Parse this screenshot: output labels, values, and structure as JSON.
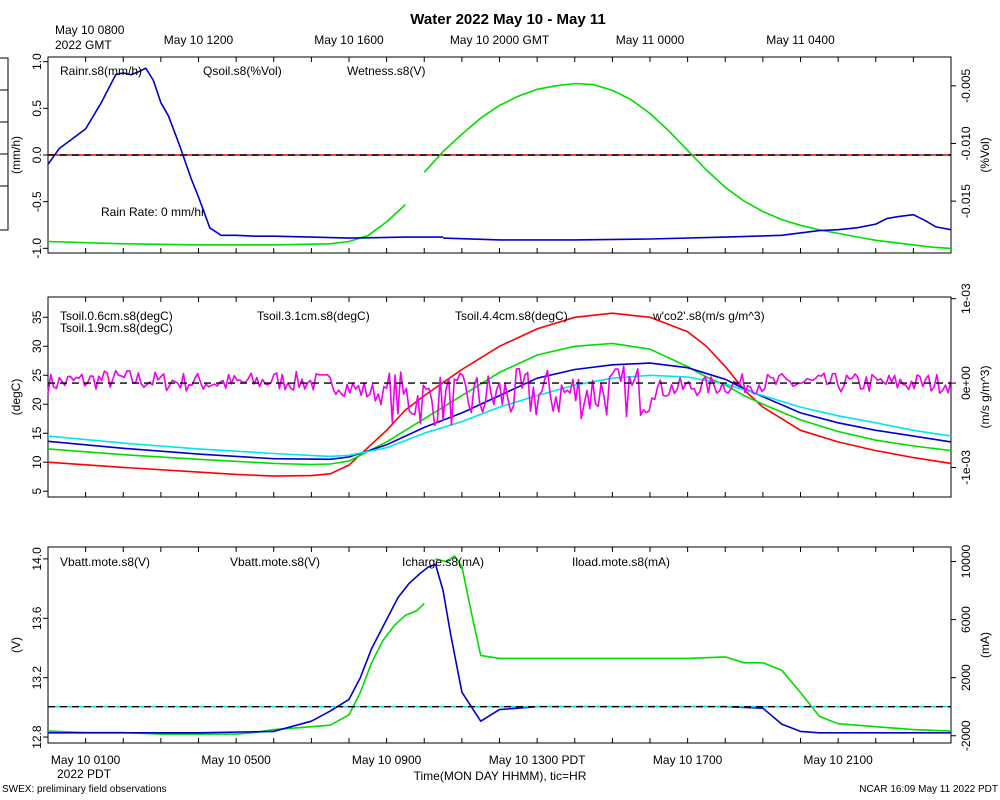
{
  "title": "Water 2022 May 10 - May 11",
  "top_axis": {
    "first_tick_line1": "May 10 0800",
    "first_tick_line2": "2022 GMT",
    "ticks": [
      {
        "h": 4,
        "label": "May 10 1200"
      },
      {
        "h": 8,
        "label": "May 10 1600"
      },
      {
        "h": 12,
        "label": "May 10 2000 GMT"
      },
      {
        "h": 16,
        "label": "May 11 0000"
      },
      {
        "h": 20,
        "label": "May 11 0400"
      }
    ]
  },
  "bottom_axis": {
    "ticks": [
      {
        "h": 1,
        "label": "May 10 0100"
      },
      {
        "h": 5,
        "label": "May 10 0500"
      },
      {
        "h": 9,
        "label": "May 10 0900"
      },
      {
        "h": 13,
        "label": "May 10 1300 PDT"
      },
      {
        "h": 17,
        "label": "May 10 1700"
      },
      {
        "h": 21,
        "label": "May 10 2100"
      }
    ],
    "year_label": "2022 PDT",
    "xlabel": "Time(MON DAY HHMM), tic=HR"
  },
  "footer": {
    "left": "SWEX: preliminary field observations",
    "right": "NCAR 16:09 May 11 2022 PDT"
  },
  "chart_data": [
    {
      "id": "water",
      "type": "line",
      "x_hours_pdt": [
        0,
        24
      ],
      "left_axis": {
        "label": "(mm/h)",
        "ylim": [
          -1.05,
          1.05
        ],
        "ticks": [
          -1.0,
          -0.5,
          0.0,
          0.5,
          1.0
        ],
        "tick_labels": [
          "-1.0",
          "-0.5",
          "0.0",
          "0.5",
          "1.0"
        ]
      },
      "right_axis": {
        "label": "(%Vol)",
        "ylim": [
          -0.0195,
          -0.0025
        ],
        "ticks": [
          -0.015,
          -0.01,
          -0.005
        ],
        "tick_labels": [
          "-0.015",
          "-0.010",
          "-0.005"
        ]
      },
      "legend": [
        {
          "text": "Rainr.s8(mm/h)",
          "color": "#ff0000"
        },
        {
          "text": "Qsoil.s8(%Vol)",
          "color": "#00dd00"
        },
        {
          "text": "Wetness.s8(V)",
          "color": "#0000cc"
        }
      ],
      "annotation": {
        "text": "Rain Rate: 0 mm/hr",
        "color": "#dd0000"
      },
      "reference_line": {
        "axis": "left",
        "value": 0.0
      },
      "series": [
        {
          "name": "Rainr.s8",
          "axis": "left",
          "color": "#ff0000",
          "x": [
            0,
            24
          ],
          "y": [
            0,
            0
          ]
        },
        {
          "name": "Qsoil.s8",
          "axis": "right",
          "color": "#00dd00",
          "segments": [
            {
              "x": [
                0,
                2,
                4,
                6,
                7.5,
                8,
                8.5,
                9.0,
                9.5
              ],
              "y": [
                -0.0185,
                -0.0187,
                -0.0188,
                -0.0188,
                -0.0187,
                -0.0185,
                -0.018,
                -0.0168,
                -0.0153
              ]
            },
            {
              "x": [
                10.0,
                10.5,
                11,
                11.5,
                12,
                12.5,
                13,
                13.5,
                14,
                14.5,
                15,
                15.5,
                16,
                16.5,
                17,
                17.5,
                18,
                18.5,
                19,
                19.5,
                20,
                20.5,
                21,
                21.5,
                22,
                22.5,
                23,
                23.5,
                24
              ],
              "y": [
                -0.0125,
                -0.0107,
                -0.0092,
                -0.0078,
                -0.0067,
                -0.0059,
                -0.0053,
                -0.005,
                -0.0048,
                -0.0049,
                -0.0054,
                -0.0062,
                -0.0074,
                -0.0089,
                -0.0106,
                -0.0123,
                -0.0138,
                -0.015,
                -0.0159,
                -0.0166,
                -0.0171,
                -0.0175,
                -0.0178,
                -0.0181,
                -0.0184,
                -0.0186,
                -0.0188,
                -0.019,
                -0.0191
              ]
            }
          ]
        },
        {
          "name": "Wetness.s8",
          "axis": "left",
          "color": "#0000cc",
          "segments": [
            {
              "x": [
                0,
                0.3,
                0.6,
                1.0,
                1.4,
                1.8,
                2.0,
                2.2,
                2.4,
                2.6,
                2.8,
                3.0,
                3.2,
                3.5,
                3.8,
                4.0,
                4.3,
                4.6,
                5.0,
                5.5,
                6,
                7,
                8,
                9.5,
                10.2,
                10.5
              ],
              "y": [
                -0.1,
                0.07,
                0.16,
                0.28,
                0.55,
                0.86,
                0.88,
                0.86,
                0.89,
                0.93,
                0.8,
                0.56,
                0.42,
                0.1,
                -0.25,
                -0.45,
                -0.78,
                -0.86,
                -0.86,
                -0.87,
                -0.87,
                -0.88,
                -0.89,
                -0.88,
                -0.88,
                -0.88
              ]
            },
            {
              "x": [
                10.5,
                12,
                14,
                16,
                18,
                19.5,
                20.5,
                21,
                21.5,
                22,
                22.3,
                22.6,
                23,
                23.3,
                23.6,
                24
              ],
              "y": [
                -0.89,
                -0.91,
                -0.91,
                -0.9,
                -0.88,
                -0.86,
                -0.81,
                -0.8,
                -0.78,
                -0.74,
                -0.68,
                -0.66,
                -0.64,
                -0.7,
                -0.77,
                -0.8
              ]
            }
          ]
        }
      ]
    },
    {
      "id": "temperature",
      "type": "line",
      "x_hours_pdt": [
        0,
        24
      ],
      "left_axis": {
        "label": "(degC)",
        "ylim": [
          4,
          38.5
        ],
        "ticks": [
          5,
          10,
          15,
          20,
          25,
          30,
          35
        ],
        "tick_labels": [
          "5",
          "10",
          "15",
          "20",
          "25",
          "30",
          "35"
        ]
      },
      "right_axis": {
        "label": "(m/s g/m^3)",
        "ylim": [
          -0.00135,
          0.00102
        ],
        "ticks": [
          -0.001,
          0,
          0.001
        ],
        "tick_labels": [
          "-1e-03",
          "0e+00",
          "1e-03"
        ]
      },
      "legend": [
        {
          "text": "Tsoil.0.6cm.s8(degC)",
          "color": "#ff0000"
        },
        {
          "text": "Tsoil.1.9cm.s8(degC)",
          "color": "#00dd00"
        },
        {
          "text": "Tsoil.3.1cm.s8(degC)",
          "color": "#0000cc"
        },
        {
          "text": "Tsoil.4.4cm.s8(degC)",
          "color": "#00e5ee"
        },
        {
          "text": "w'co2'.s8(m/s g/m^3)",
          "color": "#ee00ee"
        }
      ],
      "reference_line": {
        "axis": "right",
        "value": 0
      },
      "series": [
        {
          "name": "Tsoil.0.6cm",
          "axis": "left",
          "color": "#ff0000",
          "x": [
            0,
            2,
            4,
            5,
            6,
            7,
            7.5,
            8,
            8.5,
            9,
            9.5,
            10,
            11,
            12,
            13,
            14,
            15,
            16,
            17,
            17.5,
            18,
            18.5,
            19,
            20,
            21,
            22,
            23,
            24
          ],
          "y": [
            10,
            9.1,
            8.3,
            7.9,
            7.6,
            7.7,
            8.0,
            9.5,
            12.5,
            15.5,
            19,
            21.5,
            26,
            30,
            33,
            35,
            35.7,
            35,
            32.5,
            30,
            26.5,
            22.5,
            19.5,
            15.5,
            13.5,
            12,
            10.8,
            9.8
          ]
        },
        {
          "name": "Tsoil.1.9cm",
          "axis": "left",
          "color": "#00dd00",
          "x": [
            0,
            2,
            4,
            6,
            7,
            7.5,
            8,
            9,
            10,
            11,
            12,
            13,
            14,
            15,
            16,
            17,
            17.5,
            18,
            18.5,
            19,
            20,
            21,
            22,
            23,
            24
          ],
          "y": [
            12.3,
            11.3,
            10.5,
            9.8,
            9.6,
            9.7,
            10.2,
            13.5,
            17.5,
            21.5,
            25.5,
            28.5,
            30,
            30.5,
            29.5,
            26.5,
            24.7,
            23.3,
            21.5,
            20.0,
            17.3,
            15.3,
            13.8,
            12.8,
            12.0
          ]
        },
        {
          "name": "Tsoil.3.1cm",
          "axis": "left",
          "color": "#0000cc",
          "x": [
            0,
            2,
            4,
            6,
            7.5,
            8,
            9,
            10,
            11,
            12,
            13,
            14,
            15,
            16,
            17,
            18,
            18.5,
            19,
            20,
            21,
            22,
            23,
            24
          ],
          "y": [
            13.6,
            12.4,
            11.4,
            10.6,
            10.5,
            10.9,
            13,
            16,
            18.5,
            21.5,
            24.5,
            26,
            26.8,
            27.1,
            26.3,
            24.3,
            22.7,
            21.3,
            18.5,
            16.8,
            15.5,
            14.5,
            13.5
          ]
        },
        {
          "name": "Tsoil.4.4cm",
          "axis": "left",
          "color": "#00e5ee",
          "x": [
            0,
            2,
            4,
            6,
            7.5,
            8,
            9,
            10,
            11,
            12,
            13,
            14,
            15,
            16,
            17,
            18,
            18.5,
            19,
            20,
            21,
            22,
            23,
            24
          ],
          "y": [
            14.5,
            13.3,
            12.3,
            11.5,
            11.0,
            11.2,
            12.5,
            15,
            17,
            19.5,
            21.5,
            23.3,
            24.5,
            25,
            24.7,
            23.5,
            22.5,
            21.5,
            19.5,
            18,
            16.8,
            15.5,
            14.5
          ]
        },
        {
          "name": "w'co2'.s8",
          "axis": "right",
          "color": "#ee00ee",
          "noisy": true,
          "x": [
            0,
            1,
            2,
            3,
            4,
            5,
            6,
            7,
            7.5,
            8,
            9,
            10,
            11,
            12,
            13,
            14,
            15,
            16,
            17,
            18,
            19,
            20,
            21,
            22,
            23,
            24
          ],
          "y": [
            0,
            3e-05,
            5e-05,
            2e-05,
            1e-05,
            0,
            3e-05,
            1e-05,
            0,
            -5e-05,
            -0.00015,
            -0.0002,
            -0.0002,
            -0.00015,
            -0.00014,
            -0.00012,
            -0.0001,
            -8e-05,
            -5e-05,
            -2e-05,
            0,
            0,
            0,
            0,
            0,
            0
          ]
        }
      ]
    },
    {
      "id": "power",
      "type": "line",
      "x_hours_pdt": [
        0,
        24
      ],
      "left_axis": {
        "label": "(V)",
        "ylim": [
          12.76,
          14.08
        ],
        "ticks": [
          12.8,
          13.2,
          13.6,
          14.0
        ],
        "tick_labels": [
          "12.8",
          "13.2",
          "13.6",
          "14.0"
        ]
      },
      "right_axis": {
        "label": "(mA)",
        "ylim": [
          -2500,
          11000
        ],
        "ticks": [
          -2000,
          2000,
          6000,
          10000
        ],
        "tick_labels": [
          "-2000",
          "2000",
          "6000",
          "10000"
        ]
      },
      "legend": [
        {
          "text": "Vbatt.mote.s8(V)",
          "color": "#ff0000"
        },
        {
          "text": "Vbatt.mote.s8(V)",
          "color": "#00dd00"
        },
        {
          "text": "Icharge.s8(mA)",
          "color": "#0000cc"
        },
        {
          "text": "Iload.mote.s8(mA)",
          "color": "#00e5ee"
        }
      ],
      "reference_line": {
        "axis": "right",
        "value": 0
      },
      "series": [
        {
          "name": "Vbatt.mote (V)",
          "axis": "left",
          "color": "#00dd00",
          "segments": [
            {
              "x": [
                0,
                1,
                2,
                3,
                4,
                5,
                5.5,
                6,
                6.5,
                7,
                7.5,
                8,
                8.3,
                8.6,
                8.9,
                9.2,
                9.5,
                9.8,
                10.0
              ],
              "y": [
                12.84,
                12.83,
                12.83,
                12.82,
                12.82,
                12.82,
                12.83,
                12.85,
                12.86,
                12.87,
                12.88,
                12.95,
                13.1,
                13.3,
                13.45,
                13.55,
                13.62,
                13.65,
                13.7
              ]
            },
            {
              "x": [
                10.3,
                10.6,
                10.8,
                11.0,
                11.2,
                11.5,
                12,
                13,
                14,
                15,
                16,
                17,
                18,
                18.5,
                19,
                19.5,
                20,
                20.5,
                21,
                22,
                23,
                24
              ],
              "y": [
                14.0,
                13.98,
                14.02,
                13.95,
                13.7,
                13.35,
                13.33,
                13.33,
                13.33,
                13.33,
                13.33,
                13.33,
                13.34,
                13.3,
                13.3,
                13.25,
                13.1,
                12.94,
                12.89,
                12.87,
                12.85,
                12.84
              ]
            }
          ]
        },
        {
          "name": "Icharge.s8",
          "axis": "right",
          "color": "#0000cc",
          "x": [
            0,
            2,
            4,
            6,
            7,
            7.5,
            8,
            8.3,
            8.6,
            9,
            9.3,
            9.6,
            9.9,
            10.1,
            10.3,
            10.5,
            10.7,
            11.0,
            11.5,
            12,
            13,
            14,
            15,
            16,
            17,
            18,
            19,
            19.5,
            20,
            20.5,
            21,
            22,
            23,
            24
          ],
          "y": [
            -1800,
            -1800,
            -1800,
            -1700,
            -1000,
            -300,
            500,
            2000,
            4000,
            6000,
            7500,
            8500,
            9200,
            9600,
            9800,
            8000,
            5000,
            1000,
            -1000,
            -200,
            0,
            0,
            0,
            0,
            0,
            0,
            -100,
            -1200,
            -1700,
            -1800,
            -1800,
            -1800,
            -1800,
            -1800
          ]
        },
        {
          "name": "Iload.mote.s8",
          "axis": "right",
          "color": "#00e5ee",
          "x": [
            0,
            24
          ],
          "y": [
            0,
            0
          ]
        }
      ]
    }
  ]
}
